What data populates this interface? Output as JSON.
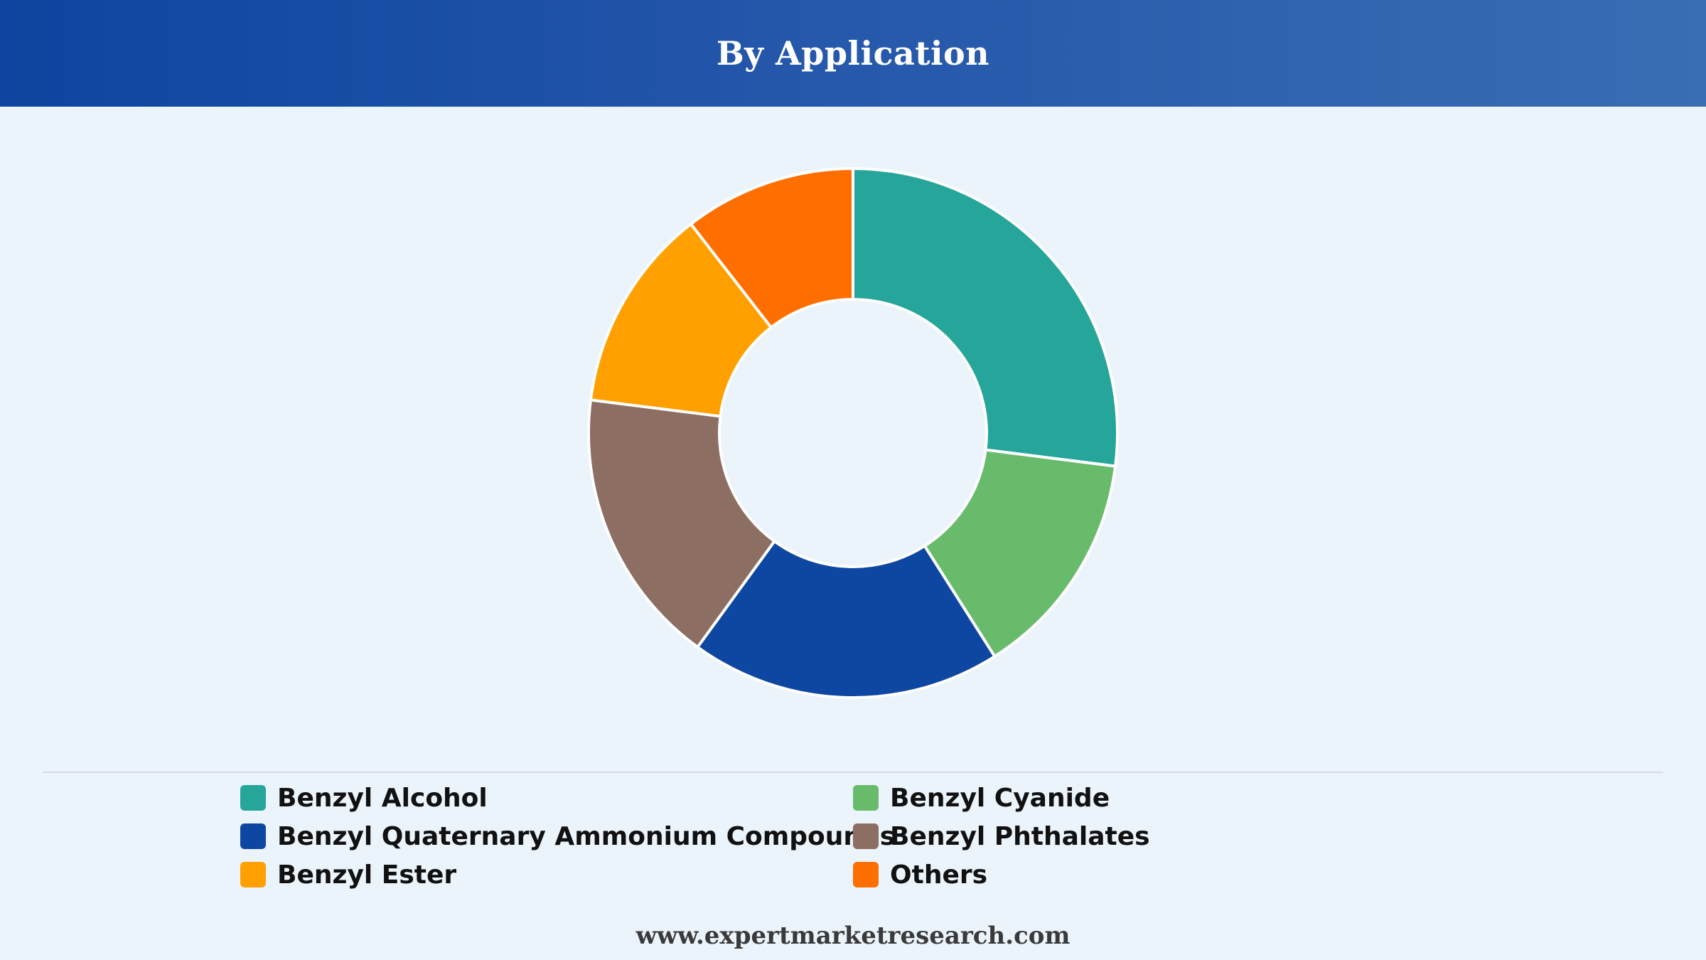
{
  "header": {
    "title": "By Application"
  },
  "footer": {
    "url": "www.expertmarketresearch.com"
  },
  "chart_data": {
    "type": "pie",
    "variant": "donut",
    "title": "By Application",
    "unit": "percent",
    "slices": [
      {
        "name": "Benzyl Alcohol",
        "value": 27,
        "color": "#26a69a"
      },
      {
        "name": "Benzyl Cyanide",
        "value": 14,
        "color": "#69bb6c"
      },
      {
        "name": "Benzyl Quaternary Ammonium Compounds",
        "value": 19,
        "color": "#0e47a1"
      },
      {
        "name": "Benzyl Phthalates",
        "value": 17,
        "color": "#8d6e63"
      },
      {
        "name": "Benzyl Ester",
        "value": 12.5,
        "color": "#ffa000"
      },
      {
        "name": "Others",
        "value": 10.5,
        "color": "#ff6f00"
      }
    ],
    "legend_order": [
      0,
      1,
      2,
      3,
      4,
      5
    ],
    "legend_position": "bottom",
    "slice_border_color": "#ffffff"
  }
}
